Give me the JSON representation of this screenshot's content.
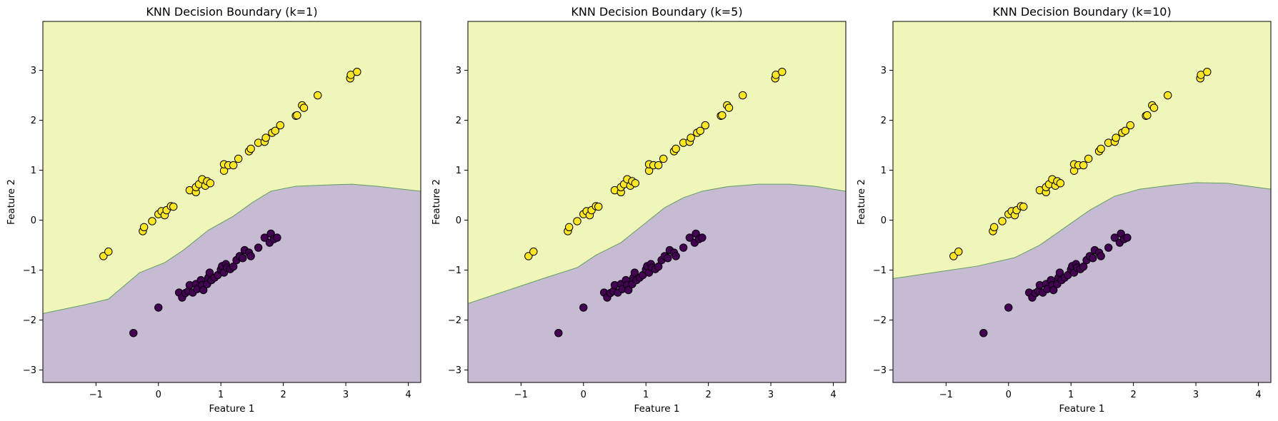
{
  "figure": {
    "class0_color": "#440154",
    "class1_color": "#fde725",
    "region0_color": "#c7bbd4",
    "region1_color": "#f0f6b9",
    "boundary_color": "#5fa05f"
  },
  "chart_data": [
    {
      "type": "scatter",
      "title": "KNN Decision Boundary (k=1)",
      "xlabel": "Feature 1",
      "ylabel": "Feature 2",
      "xlim": [
        -1.85,
        4.2
      ],
      "ylim": [
        -3.25,
        3.98
      ],
      "xticks": [
        "−1",
        "0",
        "1",
        "2",
        "3",
        "4"
      ],
      "yticks": [
        "−3",
        "−2",
        "−1",
        "0",
        "1",
        "2",
        "3"
      ],
      "boundary": [
        [
          -1.85,
          -1.87
        ],
        [
          -1.2,
          -1.7
        ],
        [
          -0.8,
          -1.58
        ],
        [
          -0.3,
          -1.05
        ],
        [
          0.1,
          -0.85
        ],
        [
          0.4,
          -0.6
        ],
        [
          0.8,
          -0.2
        ],
        [
          1.2,
          0.08
        ],
        [
          1.5,
          0.35
        ],
        [
          1.8,
          0.58
        ],
        [
          2.2,
          0.68
        ],
        [
          2.8,
          0.71
        ],
        [
          3.1,
          0.72
        ],
        [
          3.5,
          0.68
        ],
        [
          4.2,
          0.58
        ]
      ]
    },
    {
      "type": "scatter",
      "title": "KNN Decision Boundary (k=5)",
      "xlabel": "Feature 1",
      "ylabel": "Feature 2",
      "xlim": [
        -1.85,
        4.2
      ],
      "ylim": [
        -3.25,
        3.98
      ],
      "xticks": [
        "−1",
        "0",
        "1",
        "2",
        "3",
        "4"
      ],
      "yticks": [
        "−3",
        "−2",
        "−1",
        "0",
        "1",
        "2",
        "3"
      ],
      "boundary": [
        [
          -1.85,
          -1.67
        ],
        [
          -1.2,
          -1.4
        ],
        [
          -0.6,
          -1.15
        ],
        [
          -0.1,
          -0.95
        ],
        [
          0.2,
          -0.7
        ],
        [
          0.6,
          -0.45
        ],
        [
          1.0,
          -0.05
        ],
        [
          1.3,
          0.25
        ],
        [
          1.6,
          0.45
        ],
        [
          1.9,
          0.58
        ],
        [
          2.3,
          0.67
        ],
        [
          2.8,
          0.72
        ],
        [
          3.3,
          0.72
        ],
        [
          3.7,
          0.68
        ],
        [
          4.2,
          0.58
        ]
      ]
    },
    {
      "type": "scatter",
      "title": "KNN Decision Boundary (k=10)",
      "xlabel": "Feature 1",
      "ylabel": "Feature 2",
      "xlim": [
        -1.85,
        4.2
      ],
      "ylim": [
        -3.25,
        3.98
      ],
      "xticks": [
        "−1",
        "0",
        "1",
        "2",
        "3",
        "4"
      ],
      "yticks": [
        "−3",
        "−2",
        "−1",
        "0",
        "1",
        "2",
        "3"
      ],
      "boundary": [
        [
          -1.85,
          -1.17
        ],
        [
          -1.2,
          -1.05
        ],
        [
          -0.5,
          -0.92
        ],
        [
          0.1,
          -0.75
        ],
        [
          0.5,
          -0.5
        ],
        [
          0.9,
          -0.15
        ],
        [
          1.3,
          0.2
        ],
        [
          1.7,
          0.48
        ],
        [
          2.1,
          0.62
        ],
        [
          2.6,
          0.7
        ],
        [
          3.0,
          0.75
        ],
        [
          3.5,
          0.74
        ],
        [
          4.2,
          0.62
        ]
      ]
    }
  ],
  "points": {
    "class1": [
      [
        -0.88,
        -0.72
      ],
      [
        -0.8,
        -0.63
      ],
      [
        -0.25,
        -0.22
      ],
      [
        -0.23,
        -0.14
      ],
      [
        -0.1,
        -0.02
      ],
      [
        0.0,
        0.12
      ],
      [
        0.05,
        0.18
      ],
      [
        0.1,
        0.1
      ],
      [
        0.13,
        0.2
      ],
      [
        0.2,
        0.28
      ],
      [
        0.24,
        0.27
      ],
      [
        0.5,
        0.6
      ],
      [
        0.6,
        0.56
      ],
      [
        0.6,
        0.66
      ],
      [
        0.65,
        0.72
      ],
      [
        0.7,
        0.82
      ],
      [
        0.75,
        0.69
      ],
      [
        0.78,
        0.78
      ],
      [
        0.83,
        0.74
      ],
      [
        1.05,
        0.99
      ],
      [
        1.05,
        1.12
      ],
      [
        1.12,
        1.1
      ],
      [
        1.2,
        1.1
      ],
      [
        1.28,
        1.23
      ],
      [
        1.45,
        1.38
      ],
      [
        1.48,
        1.43
      ],
      [
        1.6,
        1.55
      ],
      [
        1.7,
        1.57
      ],
      [
        1.72,
        1.65
      ],
      [
        1.82,
        1.75
      ],
      [
        1.87,
        1.79
      ],
      [
        1.95,
        1.9
      ],
      [
        2.2,
        2.09
      ],
      [
        2.22,
        2.1
      ],
      [
        2.3,
        2.3
      ],
      [
        2.33,
        2.25
      ],
      [
        2.55,
        2.5
      ],
      [
        3.07,
        2.84
      ],
      [
        3.08,
        2.91
      ],
      [
        3.18,
        2.97
      ]
    ],
    "class0": [
      [
        -0.4,
        -2.26
      ],
      [
        0.0,
        -1.75
      ],
      [
        0.33,
        -1.45
      ],
      [
        0.38,
        -1.55
      ],
      [
        0.43,
        -1.46
      ],
      [
        0.48,
        -1.42
      ],
      [
        0.5,
        -1.3
      ],
      [
        0.55,
        -1.45
      ],
      [
        0.6,
        -1.28
      ],
      [
        0.62,
        -1.38
      ],
      [
        0.68,
        -1.2
      ],
      [
        0.7,
        -1.3
      ],
      [
        0.72,
        -1.4
      ],
      [
        0.78,
        -1.28
      ],
      [
        0.8,
        -1.15
      ],
      [
        0.82,
        -1.05
      ],
      [
        0.85,
        -1.2
      ],
      [
        0.9,
        -1.15
      ],
      [
        0.95,
        -1.1
      ],
      [
        1.0,
        -0.99
      ],
      [
        1.02,
        -0.92
      ],
      [
        1.05,
        -1.05
      ],
      [
        1.08,
        -0.88
      ],
      [
        1.1,
        -0.95
      ],
      [
        1.15,
        -0.98
      ],
      [
        1.2,
        -0.93
      ],
      [
        1.25,
        -0.8
      ],
      [
        1.3,
        -0.72
      ],
      [
        1.35,
        -0.76
      ],
      [
        1.38,
        -0.6
      ],
      [
        1.45,
        -0.65
      ],
      [
        1.48,
        -0.72
      ],
      [
        1.6,
        -0.55
      ],
      [
        1.7,
        -0.35
      ],
      [
        1.78,
        -0.45
      ],
      [
        1.8,
        -0.27
      ],
      [
        1.85,
        -0.38
      ],
      [
        1.9,
        -0.35
      ]
    ]
  }
}
